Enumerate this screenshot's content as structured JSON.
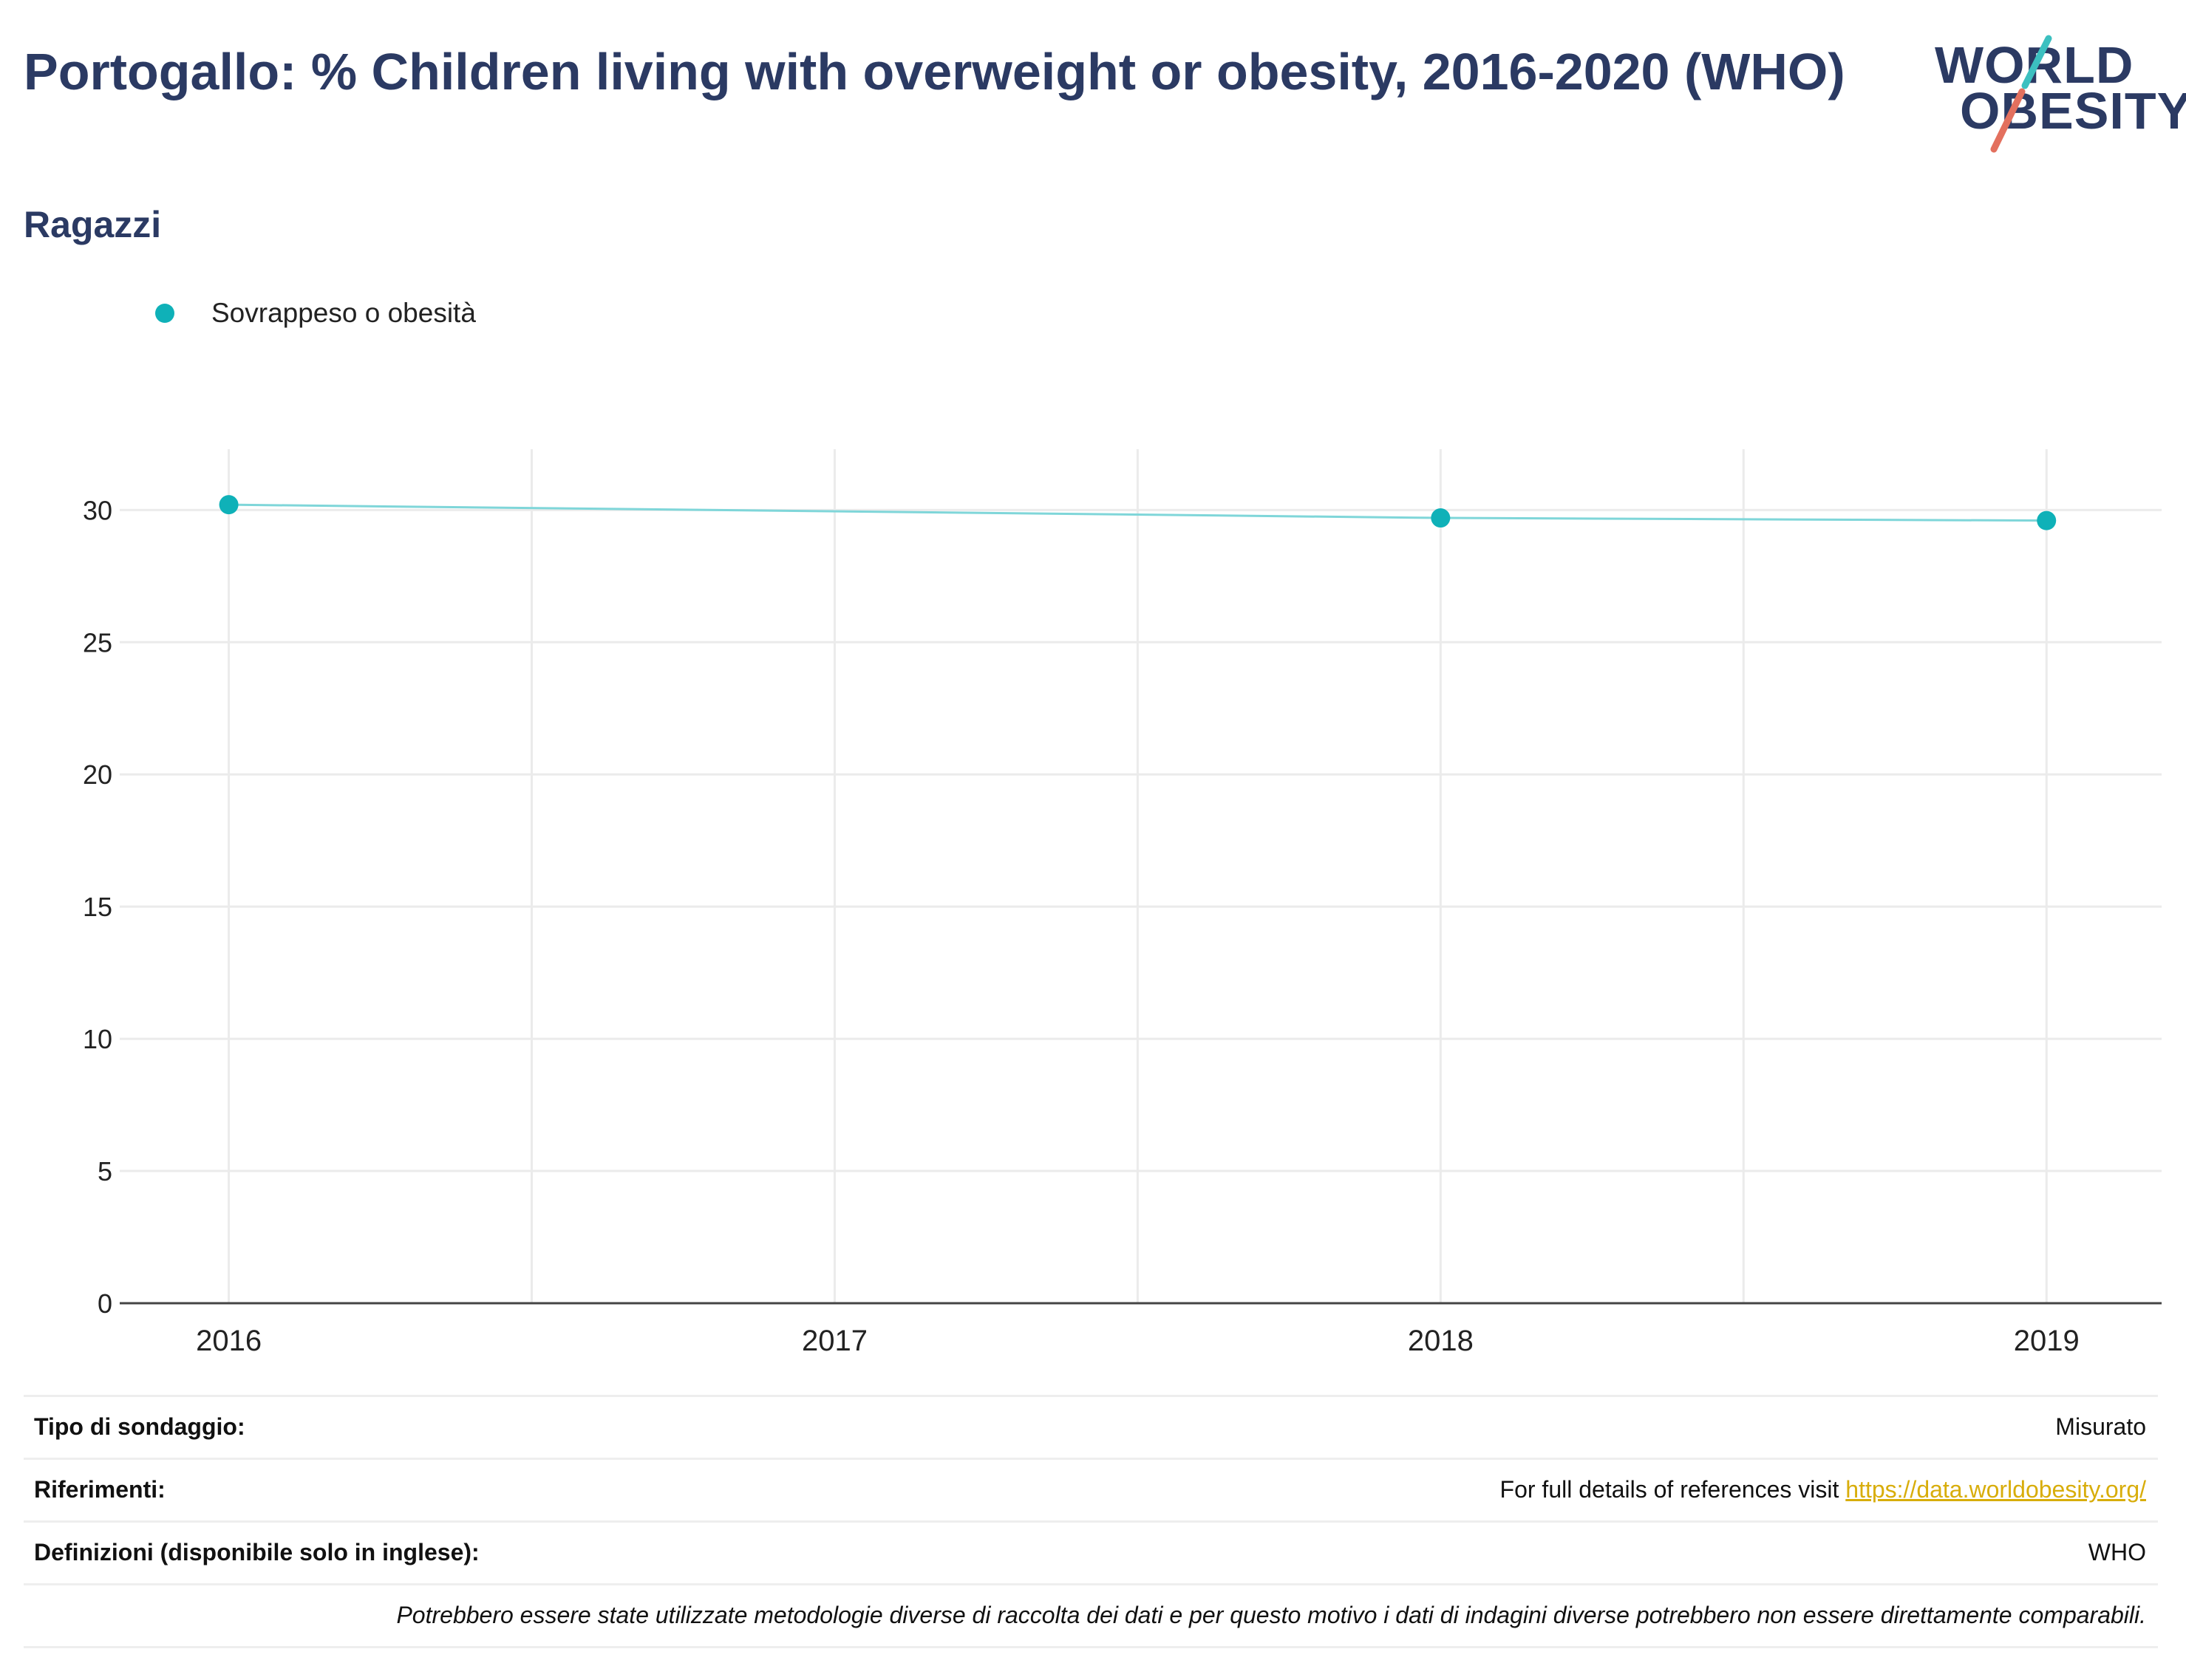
{
  "header": {
    "title": "Portogallo: % Children living with overweight or obesity, 2016-2020 (WHO)",
    "subtitle": "Ragazzi"
  },
  "logo": {
    "line1": "WORLD",
    "line2": "OBESITY"
  },
  "chart_data": {
    "type": "line",
    "x": [
      2016,
      2018,
      2019
    ],
    "series": [
      {
        "name": "Sovrappeso o obesità",
        "values": [
          30.2,
          29.7,
          29.6
        ]
      }
    ],
    "xticks": [
      "2016",
      "2017",
      "2018",
      "2019"
    ],
    "yticks": [
      "0",
      "5",
      "10",
      "15",
      "20",
      "25",
      "30"
    ],
    "xlim": [
      2015.82,
      2019.19
    ],
    "ylim": [
      0,
      32.3
    ],
    "grid": true,
    "legend_position": "top-left"
  },
  "colors": {
    "marker": "#0fb1b8",
    "line": "#7fd6d9",
    "title": "#2b3a63",
    "link": "#d8ad0b",
    "logo_teal": "#3cc0c0",
    "logo_red": "#e3705e"
  },
  "info": {
    "survey_label": "Tipo di sondaggio:",
    "survey_value": "Misurato",
    "refs_label": "Riferimenti:",
    "refs_text": "For full details of references visit ",
    "refs_link": "https://data.worldobesity.org/",
    "defs_label": "Definizioni (disponibile solo in inglese):",
    "defs_value": "WHO",
    "note": "Potrebbero essere state utilizzate metodologie diverse di raccolta dei dati e per questo motivo i dati di indagini diverse potrebbero non essere direttamente comparabili."
  }
}
